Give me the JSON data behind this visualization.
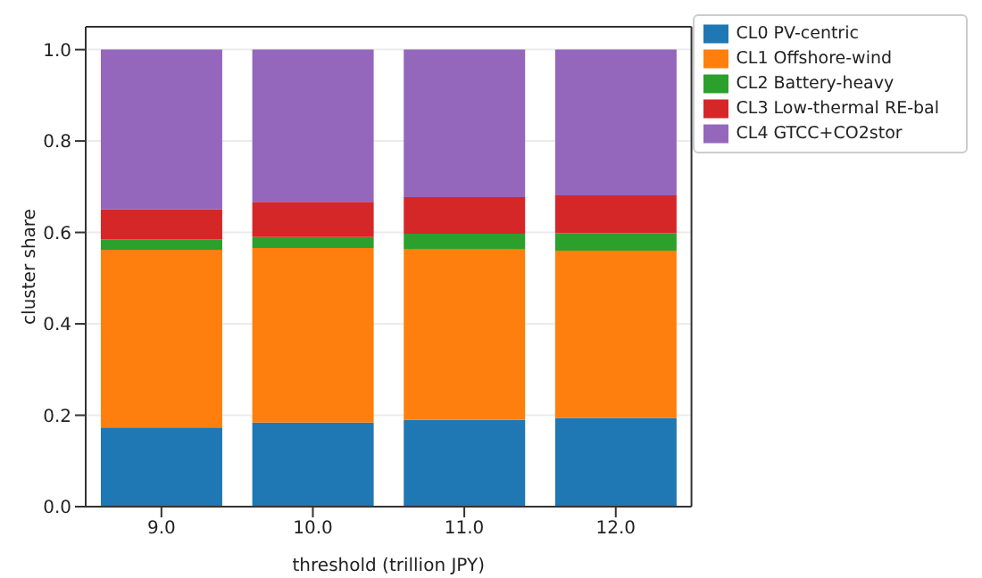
{
  "chart_data": {
    "type": "bar",
    "stacked": true,
    "xlabel": "threshold (trillion JPY)",
    "ylabel": "cluster share",
    "categories": [
      "9.0",
      "10.0",
      "11.0",
      "12.0"
    ],
    "series": [
      {
        "name": "CL0 PV-centric",
        "color": "#1f77b4",
        "values": [
          0.173,
          0.184,
          0.19,
          0.194
        ]
      },
      {
        "name": "CL1 Offshore-wind",
        "color": "#ff7f0e",
        "values": [
          0.389,
          0.382,
          0.374,
          0.366
        ]
      },
      {
        "name": "CL2 Battery-heavy",
        "color": "#2ca02c",
        "values": [
          0.023,
          0.024,
          0.033,
          0.038
        ]
      },
      {
        "name": "CL3 Low-thermal RE-bal",
        "color": "#d62728",
        "values": [
          0.066,
          0.077,
          0.08,
          0.083
        ]
      },
      {
        "name": "CL4 GTCC+CO2stor",
        "color": "#9467bd",
        "values": [
          0.349,
          0.333,
          0.323,
          0.319
        ]
      }
    ],
    "ylim": [
      0,
      1.05
    ],
    "yticks": [
      {
        "value": 0,
        "label": "0.0"
      },
      {
        "value": 0.2,
        "label": "0.2"
      },
      {
        "value": 0.4,
        "label": "0.4"
      },
      {
        "value": 0.6,
        "label": "0.6"
      },
      {
        "value": 0.8,
        "label": "0.8"
      },
      {
        "value": 1,
        "label": "1.0"
      }
    ],
    "grid": "y",
    "legend": "top right"
  }
}
